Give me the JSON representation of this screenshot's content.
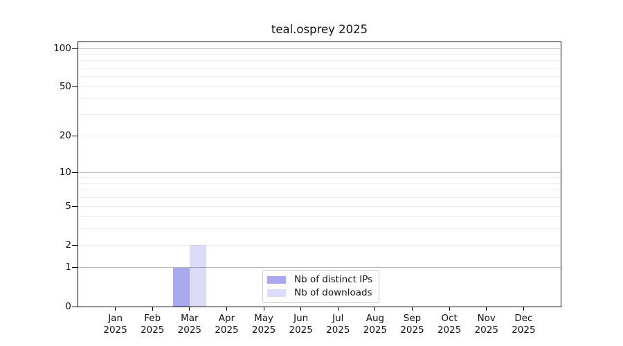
{
  "chart_data": {
    "type": "bar",
    "title": "teal.osprey 2025",
    "x_axis": {
      "months": [
        "Jan",
        "Feb",
        "Mar",
        "Apr",
        "May",
        "Jun",
        "Jul",
        "Aug",
        "Sep",
        "Oct",
        "Nov",
        "Dec"
      ],
      "year": "2025"
    },
    "series": [
      {
        "name": "Nb of distinct IPs",
        "color": "#a9a9f0",
        "values": [
          0,
          0,
          1,
          0,
          0,
          0,
          0,
          0,
          0,
          0,
          0,
          0
        ]
      },
      {
        "name": "Nb of downloads",
        "color": "#dcdcf8",
        "values": [
          0,
          0,
          2,
          0,
          0,
          0,
          0,
          0,
          0,
          0,
          0,
          0
        ]
      }
    ],
    "y_axis": {
      "scale": "log1p",
      "lim": [
        0,
        100
      ],
      "tick_values": [
        0,
        1,
        2,
        5,
        10,
        20,
        50,
        100
      ],
      "tick_labels": [
        "0",
        "1",
        "2",
        "5",
        "10",
        "20",
        "50",
        "100"
      ],
      "grid_major": [
        1,
        10,
        100
      ],
      "grid_minor": [
        2,
        3,
        4,
        5,
        6,
        7,
        8,
        9,
        20,
        30,
        40,
        50,
        60,
        70,
        80,
        90
      ]
    },
    "legend": {
      "entries": [
        "Nb of distinct IPs",
        "Nb of downloads"
      ],
      "position": "lower center"
    },
    "grid": "horizontal"
  },
  "colors": {
    "bar_distinct_ips": "#a9a9f0",
    "bar_downloads": "#dcdcf8",
    "grid_major": "#b8b8b8",
    "grid_minor": "#efefef",
    "spine": "#000000",
    "text": "#111111",
    "legend_border": "#cccccc",
    "background": "#ffffff"
  }
}
